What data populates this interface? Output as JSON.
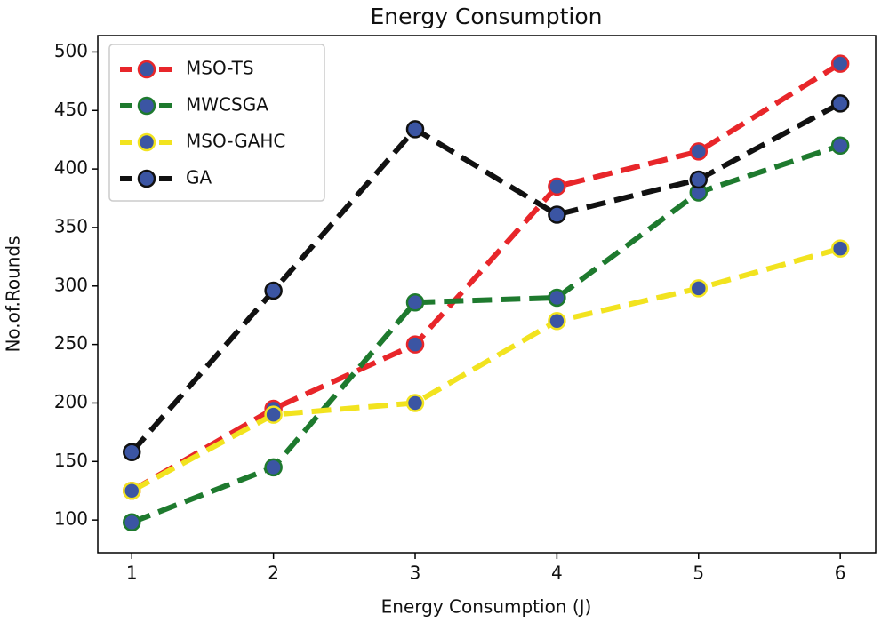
{
  "chart_data": {
    "type": "line",
    "title": "Energy Consumption",
    "x_label": "Energy Consumption (J)",
    "y_label": "No.of.Rounds",
    "x": [
      1,
      2,
      3,
      4,
      5,
      6
    ],
    "series": [
      {
        "name": "MSO-TS",
        "color": "#e8262a",
        "values": [
          125,
          195,
          250,
          385,
          415,
          490
        ]
      },
      {
        "name": "MWCSGA",
        "color": "#1e7a2e",
        "values": [
          98,
          145,
          286,
          290,
          380,
          420
        ]
      },
      {
        "name": "MSO-GAHC",
        "color": "#f2e31f",
        "values": [
          125,
          190,
          200,
          270,
          298,
          332
        ]
      },
      {
        "name": "GA",
        "color": "#111111",
        "values": [
          158,
          296,
          434,
          361,
          391,
          456
        ]
      }
    ],
    "marker_color": "#3b55a3",
    "xlim": [
      0.76,
      6.25
    ],
    "xticks": [
      1,
      2,
      3,
      4,
      5,
      6
    ],
    "ylim": [
      72,
      514
    ],
    "yticks": [
      100,
      150,
      200,
      250,
      300,
      350,
      400,
      450,
      500
    ],
    "grid": false,
    "legend": "upper left"
  }
}
